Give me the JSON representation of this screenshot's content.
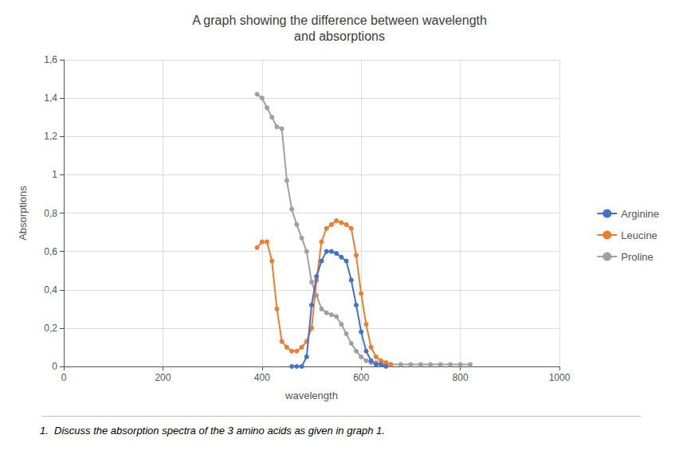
{
  "chart_data": {
    "type": "line",
    "title": "A graph showing the difference between wavelength\nand absorptions",
    "x_label": "wavelength",
    "y_label": "Absorptions",
    "xlim": [
      0,
      1000
    ],
    "ylim": [
      0,
      1.6
    ],
    "xticks": [
      0,
      200,
      400,
      600,
      800,
      1000
    ],
    "yticks": [
      0,
      {
        "value": 0.2,
        "label": "0,2"
      },
      {
        "value": 0.4,
        "label": "0,4"
      },
      {
        "value": 0.6,
        "label": "0,6"
      },
      {
        "value": 0.8,
        "label": "0,8"
      },
      1,
      {
        "value": 1.2,
        "label": "1,2"
      },
      {
        "value": 1.4,
        "label": "1,4"
      },
      {
        "value": 1.6,
        "label": "1,6"
      }
    ],
    "grid": true,
    "legend": "right",
    "marker": "circle",
    "line_style": "solid",
    "series": [
      {
        "name": "Arginine",
        "color": "#4472C4",
        "x": [
          460,
          470,
          480,
          490,
          500,
          510,
          520,
          530,
          540,
          550,
          560,
          570,
          580,
          590,
          600,
          610,
          620,
          630,
          640,
          650
        ],
        "values": [
          0.0,
          0.0,
          0.0,
          0.05,
          0.32,
          0.47,
          0.55,
          0.6,
          0.6,
          0.59,
          0.57,
          0.55,
          0.45,
          0.32,
          0.18,
          0.08,
          0.03,
          0.01,
          0.01,
          0.0
        ]
      },
      {
        "name": "Leucine",
        "color": "#ED7D31",
        "x": [
          390,
          400,
          410,
          420,
          430,
          440,
          450,
          460,
          470,
          480,
          490,
          500,
          510,
          520,
          530,
          540,
          550,
          560,
          570,
          580,
          590,
          600,
          610,
          620,
          630,
          640,
          650,
          660
        ],
        "values": [
          0.62,
          0.65,
          0.65,
          0.55,
          0.3,
          0.13,
          0.1,
          0.08,
          0.08,
          0.1,
          0.13,
          0.2,
          0.45,
          0.65,
          0.72,
          0.74,
          0.76,
          0.75,
          0.74,
          0.72,
          0.58,
          0.38,
          0.22,
          0.1,
          0.05,
          0.03,
          0.02,
          0.01
        ]
      },
      {
        "name": "Proline",
        "color": "#A0A0A0",
        "x": [
          390,
          400,
          410,
          420,
          430,
          440,
          450,
          460,
          470,
          480,
          490,
          500,
          510,
          520,
          530,
          540,
          550,
          560,
          570,
          580,
          590,
          600,
          610,
          620,
          630,
          640,
          660,
          680,
          700,
          720,
          740,
          760,
          780,
          800,
          820
        ],
        "values": [
          1.42,
          1.4,
          1.35,
          1.3,
          1.25,
          1.24,
          0.97,
          0.82,
          0.74,
          0.67,
          0.6,
          0.44,
          0.37,
          0.3,
          0.28,
          0.27,
          0.26,
          0.22,
          0.17,
          0.12,
          0.08,
          0.05,
          0.03,
          0.02,
          0.02,
          0.01,
          0.01,
          0.01,
          0.01,
          0.01,
          0.01,
          0.01,
          0.01,
          0.01,
          0.01
        ]
      }
    ],
    "annotations": [
      "1.  Discuss the absorption spectra of the 3 amino acids as given in graph 1."
    ]
  }
}
